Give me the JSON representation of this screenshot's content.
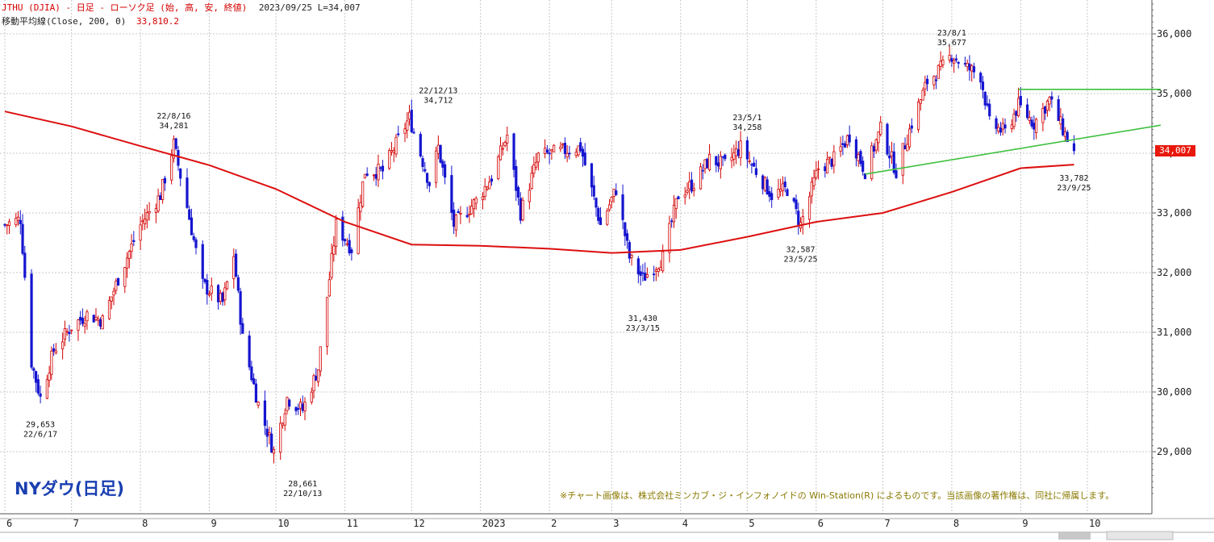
{
  "header": {
    "symbol_line": "JTHU (DJIA) - 日足 - ローソク足 (始, 高, 安, 終値)",
    "date_value": "2023/09/25 L=34,007",
    "ma_label": "移動平均線(Close, 200, 0)",
    "ma_value": "33,810.2"
  },
  "title": "NYダウ(日足)",
  "credit": "※チャート画像は、株式会社ミンカブ・ジ・インフォノイドの Win-Station(R) によるものです。当該画像の著作権は、同社に帰属します。",
  "last_price_tag": "34,007",
  "colors": {
    "up": "#d40000",
    "down": "#1515d0",
    "ma": "#dd0f0f",
    "trend": "#3fc03f",
    "grid": "#c8c8c8",
    "price_tag": "#e8180c"
  },
  "chart_data": {
    "type": "candlestick",
    "y_axis": {
      "min": 28200,
      "max": 36600,
      "ticks": [
        29000,
        30000,
        31000,
        32000,
        33000,
        34000,
        35000,
        36000
      ],
      "tick_labels": [
        "29,000",
        "30,000",
        "31,000",
        "32,000",
        "33,000",
        "34,000",
        "35,000",
        "36,000"
      ]
    },
    "x_axis": {
      "labels": [
        "6",
        "7",
        "8",
        "9",
        "10",
        "11",
        "12",
        "2023",
        "2",
        "3",
        "4",
        "5",
        "6",
        "7",
        "8",
        "9",
        "10"
      ]
    },
    "close_series": [
      {
        "date": "2022-06-01",
        "value": 32800
      },
      {
        "date": "2022-06-08",
        "value": 32900
      },
      {
        "date": "2022-06-13",
        "value": 30500
      },
      {
        "date": "2022-06-17",
        "value": 29900
      },
      {
        "date": "2022-06-23",
        "value": 30700
      },
      {
        "date": "2022-07-01",
        "value": 31100
      },
      {
        "date": "2022-07-08",
        "value": 31300
      },
      {
        "date": "2022-07-15",
        "value": 31200
      },
      {
        "date": "2022-07-22",
        "value": 31900
      },
      {
        "date": "2022-08-01",
        "value": 32800
      },
      {
        "date": "2022-08-10",
        "value": 33300
      },
      {
        "date": "2022-08-16",
        "value": 34150
      },
      {
        "date": "2022-08-22",
        "value": 33100
      },
      {
        "date": "2022-08-29",
        "value": 31800
      },
      {
        "date": "2022-09-07",
        "value": 31500
      },
      {
        "date": "2022-09-12",
        "value": 32300
      },
      {
        "date": "2022-09-16",
        "value": 30900
      },
      {
        "date": "2022-09-23",
        "value": 29800
      },
      {
        "date": "2022-09-30",
        "value": 29000
      },
      {
        "date": "2022-10-06",
        "value": 29900
      },
      {
        "date": "2022-10-13",
        "value": 29700
      },
      {
        "date": "2022-10-20",
        "value": 30400
      },
      {
        "date": "2022-10-28",
        "value": 32800
      },
      {
        "date": "2022-11-04",
        "value": 32400
      },
      {
        "date": "2022-11-10",
        "value": 33700
      },
      {
        "date": "2022-11-18",
        "value": 33700
      },
      {
        "date": "2022-11-30",
        "value": 34600
      },
      {
        "date": "2022-12-09",
        "value": 33500
      },
      {
        "date": "2022-12-13",
        "value": 34100
      },
      {
        "date": "2022-12-20",
        "value": 32800
      },
      {
        "date": "2022-12-30",
        "value": 33200
      },
      {
        "date": "2023-01-06",
        "value": 33600
      },
      {
        "date": "2023-01-13",
        "value": 34300
      },
      {
        "date": "2023-01-19",
        "value": 33000
      },
      {
        "date": "2023-01-27",
        "value": 33950
      },
      {
        "date": "2023-02-02",
        "value": 34000
      },
      {
        "date": "2023-02-15",
        "value": 34100
      },
      {
        "date": "2023-02-24",
        "value": 32800
      },
      {
        "date": "2023-03-03",
        "value": 33400
      },
      {
        "date": "2023-03-09",
        "value": 32250
      },
      {
        "date": "2023-03-15",
        "value": 31900
      },
      {
        "date": "2023-03-24",
        "value": 32250
      },
      {
        "date": "2023-03-31",
        "value": 33300
      },
      {
        "date": "2023-04-07",
        "value": 33500
      },
      {
        "date": "2023-04-14",
        "value": 33900
      },
      {
        "date": "2023-04-21",
        "value": 33800
      },
      {
        "date": "2023-04-28",
        "value": 34100
      },
      {
        "date": "2023-05-05",
        "value": 33700
      },
      {
        "date": "2023-05-12",
        "value": 33300
      },
      {
        "date": "2023-05-19",
        "value": 33400
      },
      {
        "date": "2023-05-25",
        "value": 32800
      },
      {
        "date": "2023-06-02",
        "value": 33750
      },
      {
        "date": "2023-06-09",
        "value": 33900
      },
      {
        "date": "2023-06-16",
        "value": 34300
      },
      {
        "date": "2023-06-23",
        "value": 33700
      },
      {
        "date": "2023-06-30",
        "value": 34400
      },
      {
        "date": "2023-07-07",
        "value": 33700
      },
      {
        "date": "2023-07-14",
        "value": 34500
      },
      {
        "date": "2023-07-21",
        "value": 35200
      },
      {
        "date": "2023-07-28",
        "value": 35450
      },
      {
        "date": "2023-08-01",
        "value": 35650
      },
      {
        "date": "2023-08-07",
        "value": 35450
      },
      {
        "date": "2023-08-14",
        "value": 35300
      },
      {
        "date": "2023-08-18",
        "value": 34500
      },
      {
        "date": "2023-08-25",
        "value": 34350
      },
      {
        "date": "2023-08-31",
        "value": 34800
      },
      {
        "date": "2023-09-07",
        "value": 34500
      },
      {
        "date": "2023-09-14",
        "value": 34900
      },
      {
        "date": "2023-09-20",
        "value": 34400
      },
      {
        "date": "2023-09-25",
        "value": 34007
      }
    ],
    "moving_average_200": [
      {
        "date": "2022-06-01",
        "value": 34700
      },
      {
        "date": "2022-07-01",
        "value": 34450
      },
      {
        "date": "2022-08-01",
        "value": 34120
      },
      {
        "date": "2022-09-01",
        "value": 33800
      },
      {
        "date": "2022-10-01",
        "value": 33400
      },
      {
        "date": "2022-11-01",
        "value": 32850
      },
      {
        "date": "2022-12-01",
        "value": 32470
      },
      {
        "date": "2023-01-01",
        "value": 32450
      },
      {
        "date": "2023-02-01",
        "value": 32400
      },
      {
        "date": "2023-03-01",
        "value": 32330
      },
      {
        "date": "2023-04-01",
        "value": 32380
      },
      {
        "date": "2023-05-01",
        "value": 32600
      },
      {
        "date": "2023-06-01",
        "value": 32850
      },
      {
        "date": "2023-07-01",
        "value": 33000
      },
      {
        "date": "2023-08-01",
        "value": 33350
      },
      {
        "date": "2023-09-01",
        "value": 33750
      },
      {
        "date": "2023-09-25",
        "value": 33810
      }
    ],
    "trendlines": [
      {
        "from": {
          "date": "2023-06-23",
          "value": 33650
        },
        "to": {
          "date": "2023-11-03",
          "value": 34470
        }
      },
      {
        "from": {
          "date": "2023-08-31",
          "value": 35070
        },
        "to": {
          "date": "2023-11-03",
          "value": 35070
        }
      }
    ],
    "annotations": [
      {
        "date": "2022-06-17",
        "value": 29653,
        "lines": [
          "29,653",
          "22/6/17"
        ],
        "position": "below"
      },
      {
        "date": "2022-08-16",
        "value": 34281,
        "lines": [
          "22/8/16",
          "34,281"
        ],
        "position": "above"
      },
      {
        "date": "2022-10-13",
        "value": 28661,
        "lines": [
          "28,661",
          "22/10/13"
        ],
        "position": "below"
      },
      {
        "date": "2022-12-13",
        "value": 34712,
        "lines": [
          "22/12/13",
          "34,712"
        ],
        "position": "above"
      },
      {
        "date": "2023-03-15",
        "value": 31430,
        "lines": [
          "31,430",
          "23/3/15"
        ],
        "position": "below"
      },
      {
        "date": "2023-05-01",
        "value": 34258,
        "lines": [
          "23/5/1",
          "34,258"
        ],
        "position": "above"
      },
      {
        "date": "2023-05-25",
        "value": 32587,
        "lines": [
          "32,587",
          "23/5/25"
        ],
        "position": "below"
      },
      {
        "date": "2023-08-01",
        "value": 35677,
        "lines": [
          "23/8/1",
          "35,677"
        ],
        "position": "above"
      },
      {
        "date": "2023-09-25",
        "value": 33782,
        "lines": [
          "33,782",
          "23/9/25"
        ],
        "position": "below"
      }
    ]
  }
}
